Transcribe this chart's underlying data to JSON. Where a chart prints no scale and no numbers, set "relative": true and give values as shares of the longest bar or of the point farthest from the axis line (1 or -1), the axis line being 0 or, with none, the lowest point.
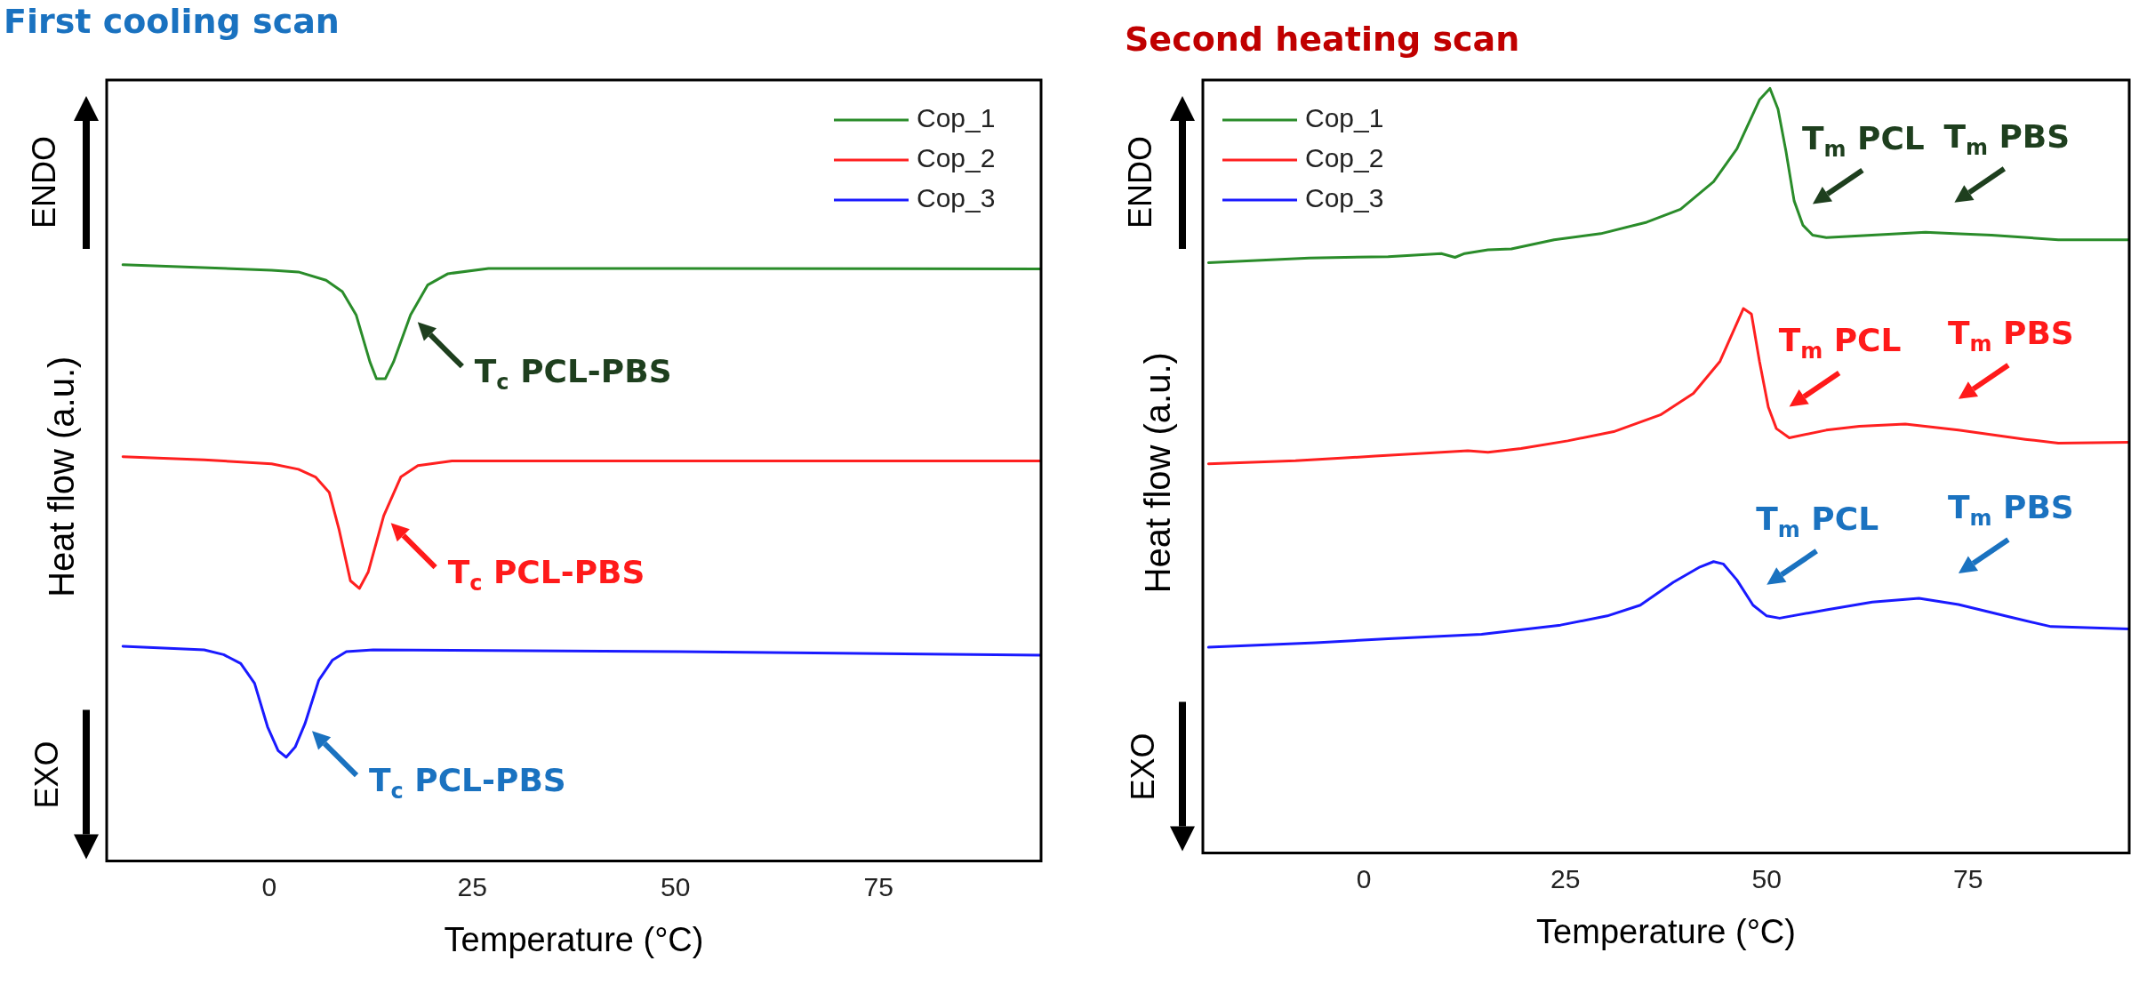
{
  "chart_data": [
    {
      "type": "line",
      "title": "First cooling scan",
      "xlabel": "Temperature (°C)",
      "ylabel": "Heat flow (a.u.)",
      "relative": true,
      "xlim": [
        -20,
        95
      ],
      "xticks": [
        0,
        25,
        50,
        75
      ],
      "legend": "top right",
      "marker": "none",
      "line_style": "solid",
      "series": [
        {
          "name": "Cop_1",
          "color": "#2a8c2a",
          "x": [
            -18,
            0.3,
            3.6,
            7,
            9,
            10.7,
            12.4,
            13.2,
            14.3,
            15.3,
            17.4,
            19.5,
            22,
            27,
            50.5,
            95
          ],
          "values": [
            1.0,
            0.991,
            0.988,
            0.974,
            0.955,
            0.916,
            0.837,
            0.809,
            0.809,
            0.837,
            0.916,
            0.966,
            0.985,
            0.994,
            0.994,
            0.993
          ]
        },
        {
          "name": "Cop_2",
          "color": "#ff2020",
          "x": [
            -18,
            -8,
            0.3,
            3.6,
            5.7,
            7.4,
            8.6,
            10,
            11.1,
            12.2,
            14.1,
            16.2,
            18.3,
            22.5,
            95
          ],
          "values": [
            0.678,
            0.673,
            0.666,
            0.657,
            0.644,
            0.618,
            0.556,
            0.47,
            0.457,
            0.485,
            0.579,
            0.644,
            0.663,
            0.671,
            0.671
          ]
        },
        {
          "name": "Cop_3",
          "color": "#1a1aff",
          "x": [
            -18,
            -8,
            -5.6,
            -3.5,
            -1.8,
            -0.2,
            1.1,
            2.1,
            3.2,
            4.4,
            6.1,
            7.8,
            9.5,
            12.8,
            50.5,
            95
          ],
          "values": [
            0.36,
            0.354,
            0.346,
            0.331,
            0.298,
            0.225,
            0.185,
            0.174,
            0.191,
            0.23,
            0.303,
            0.337,
            0.351,
            0.354,
            0.351,
            0.345
          ]
        }
      ],
      "annotations": [
        "ENDO",
        "EXO",
        {
          "text": "T$_{c}$ PCL-PBS",
          "x": 17.4,
          "y": 0.916
        },
        {
          "text": "T$_{c}$ PCL-PBS",
          "x": 14.1,
          "y": 0.579
        },
        {
          "text": "T$_{c}$ PCL-PBS",
          "x": 4.4,
          "y": 0.23
        }
      ]
    },
    {
      "type": "line",
      "title": "Second heating scan",
      "xlabel": "Temperature (°C)",
      "ylabel": "Heat flow (a.u.)",
      "relative": true,
      "xlim": [
        -20,
        95
      ],
      "xticks": [
        0,
        25,
        50,
        75
      ],
      "legend": "top left",
      "marker": "none",
      "line_style": "solid",
      "series": [
        {
          "name": "Cop_1",
          "color": "#2a8c2a",
          "x": [
            -19.3,
            -6.8,
            3,
            9.6,
            11.3,
            12.5,
            15.4,
            18.3,
            23.6,
            29.4,
            35.1,
            39.3,
            43.4,
            46.3,
            49.1,
            50.4,
            51.4,
            52.4,
            53.4,
            54.5,
            55.7,
            57.4,
            69.7,
            73.3,
            77.9,
            86.2,
            95
          ],
          "values": [
            0.772,
            0.778,
            0.78,
            0.784,
            0.779,
            0.784,
            0.789,
            0.79,
            0.802,
            0.81,
            0.825,
            0.842,
            0.878,
            0.921,
            0.985,
            1.0,
            0.973,
            0.917,
            0.853,
            0.821,
            0.808,
            0.805,
            0.812,
            0.81,
            0.808,
            0.802,
            0.802
          ]
        },
        {
          "name": "Cop_2",
          "color": "#ff2020",
          "x": [
            -19.3,
            -8.5,
            1.4,
            12.9,
            15.4,
            19.5,
            25.3,
            31,
            36.8,
            40.9,
            44.2,
            47.1,
            48.1,
            49.1,
            50.2,
            51.2,
            52.8,
            57.4,
            61.5,
            67.2,
            73.8,
            82.1,
            86.2,
            95
          ],
          "values": [
            0.509,
            0.513,
            0.519,
            0.526,
            0.524,
            0.529,
            0.539,
            0.551,
            0.573,
            0.601,
            0.643,
            0.712,
            0.705,
            0.643,
            0.583,
            0.555,
            0.543,
            0.553,
            0.558,
            0.561,
            0.553,
            0.541,
            0.536,
            0.537
          ]
        },
        {
          "name": "Cop_3",
          "color": "#1a1aff",
          "x": [
            -19.3,
            -6,
            3,
            14.6,
            24.4,
            30.2,
            34.3,
            38.4,
            41.7,
            43.4,
            44.6,
            46.3,
            48.3,
            50,
            51.6,
            57.4,
            63.1,
            68.9,
            73.8,
            80.4,
            85.3,
            95
          ],
          "values": [
            0.269,
            0.275,
            0.28,
            0.286,
            0.298,
            0.31,
            0.324,
            0.354,
            0.374,
            0.381,
            0.378,
            0.357,
            0.324,
            0.31,
            0.307,
            0.318,
            0.328,
            0.333,
            0.325,
            0.308,
            0.296,
            0.293
          ]
        }
      ],
      "annotations": [
        "ENDO",
        "EXO",
        {
          "text": "T$_{m}$ PCL",
          "x": 55.7,
          "y": 0.808
        },
        {
          "text": "T$_{m}$ PBS",
          "x": 73.3,
          "y": 0.81
        },
        {
          "text": "T$_{m}$ PCL",
          "x": 52.8,
          "y": 0.543
        },
        {
          "text": "T$_{m}$ PBS",
          "x": 73.8,
          "y": 0.553
        },
        {
          "text": "T$_{m}$ PCL",
          "x": 50,
          "y": 0.31
        },
        {
          "text": "T$_{m}$ PBS",
          "x": 73.8,
          "y": 0.325
        }
      ]
    }
  ]
}
